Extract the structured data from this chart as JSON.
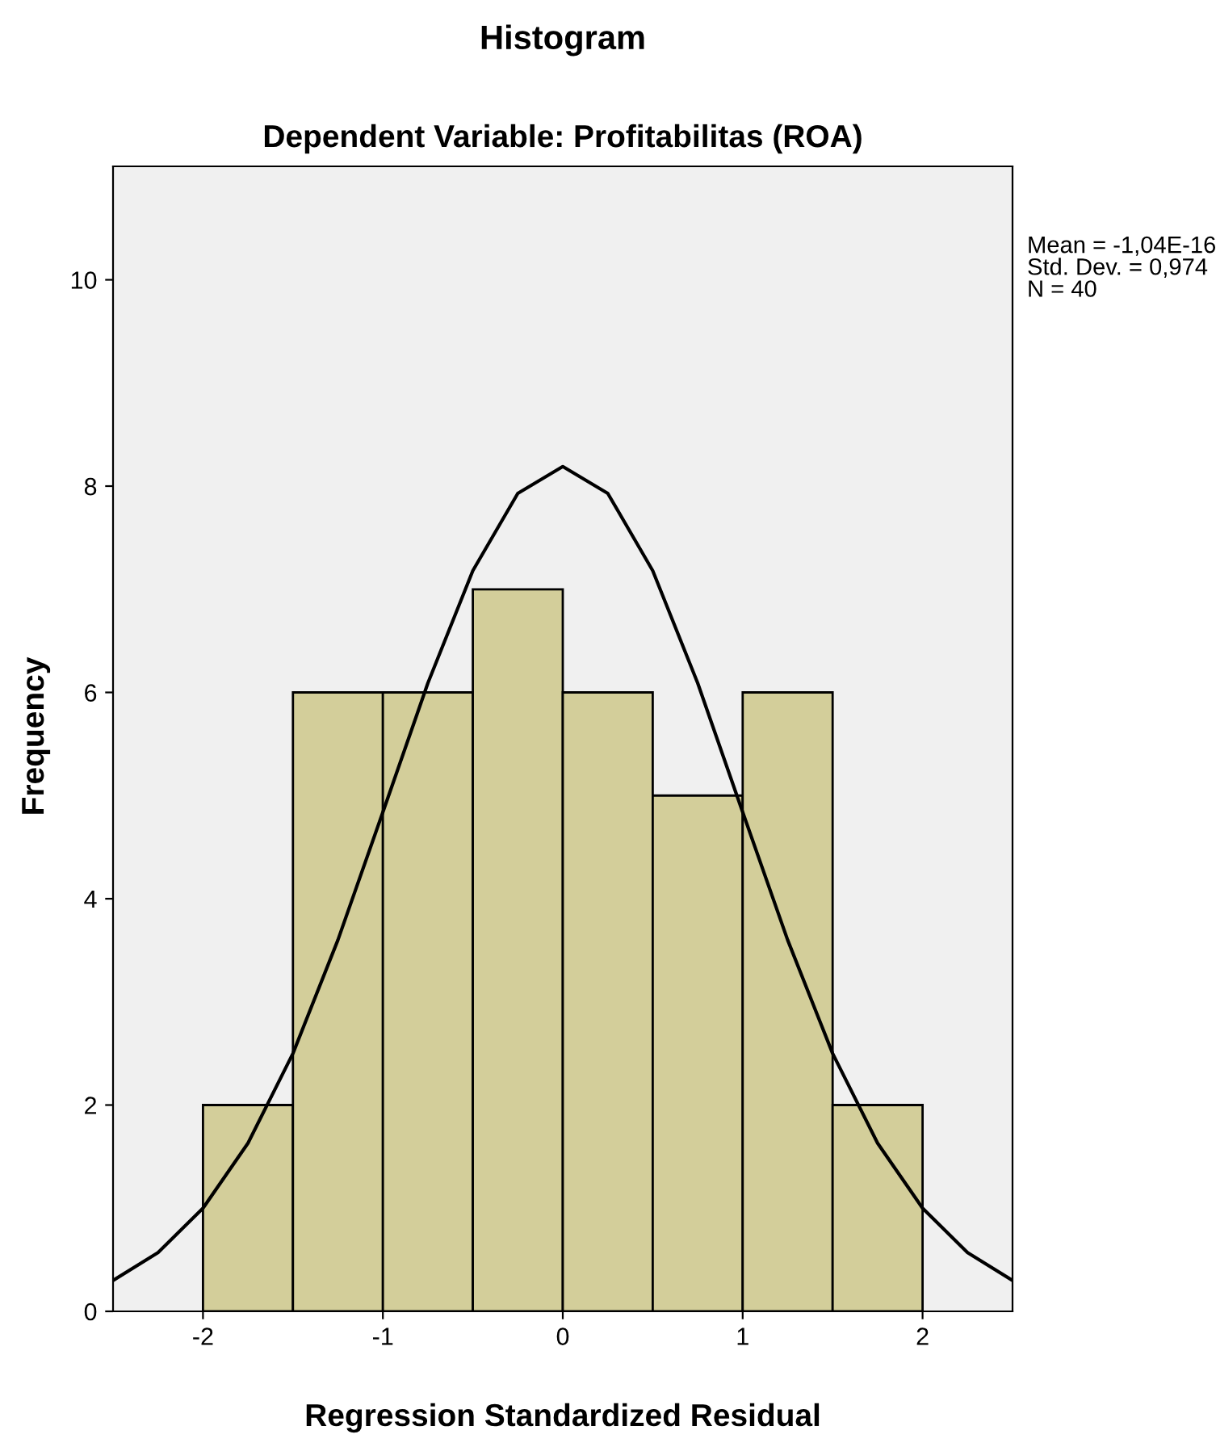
{
  "chart_data": {
    "type": "histogram",
    "title": "Histogram",
    "subtitle": "Dependent Variable: Profitabilitas (ROA)",
    "xlabel": "Regression Standardized Residual",
    "ylabel": "Frequency",
    "bins": [
      -2,
      -1.5,
      -1,
      -0.5,
      0,
      0.5,
      1,
      1.5,
      2
    ],
    "values": [
      2,
      6,
      6,
      7,
      6,
      5,
      6,
      2
    ],
    "color": "#d3ce9a",
    "series": [
      {
        "type": "line",
        "color": "#000000",
        "x": [
          -2.5,
          -2.25,
          -2,
          -1.75,
          -1.5,
          -1.25,
          -1,
          -0.75,
          -0.5,
          -0.25,
          0,
          0.25,
          0.5,
          0.75,
          1,
          1.25,
          1.5,
          1.75,
          2,
          2.25,
          2.5
        ],
        "values": [
          0.3,
          0.57,
          1.0,
          1.63,
          2.5,
          3.6,
          4.84,
          6.09,
          7.18,
          7.93,
          8.19,
          7.93,
          7.18,
          6.09,
          4.84,
          3.6,
          2.5,
          1.63,
          1.0,
          0.57,
          0.3
        ]
      }
    ],
    "xlim": [
      -2.5,
      2.5
    ],
    "xticks": [
      -2,
      -1,
      0,
      1,
      2
    ],
    "ylim": [
      0,
      11.1
    ],
    "yticks": [
      0,
      2,
      4,
      6,
      8,
      10
    ],
    "annotations": [
      "Mean = -1,04E-16\nStd. Dev. = 0,974\nN = 40"
    ],
    "grid": false,
    "legend": false
  }
}
